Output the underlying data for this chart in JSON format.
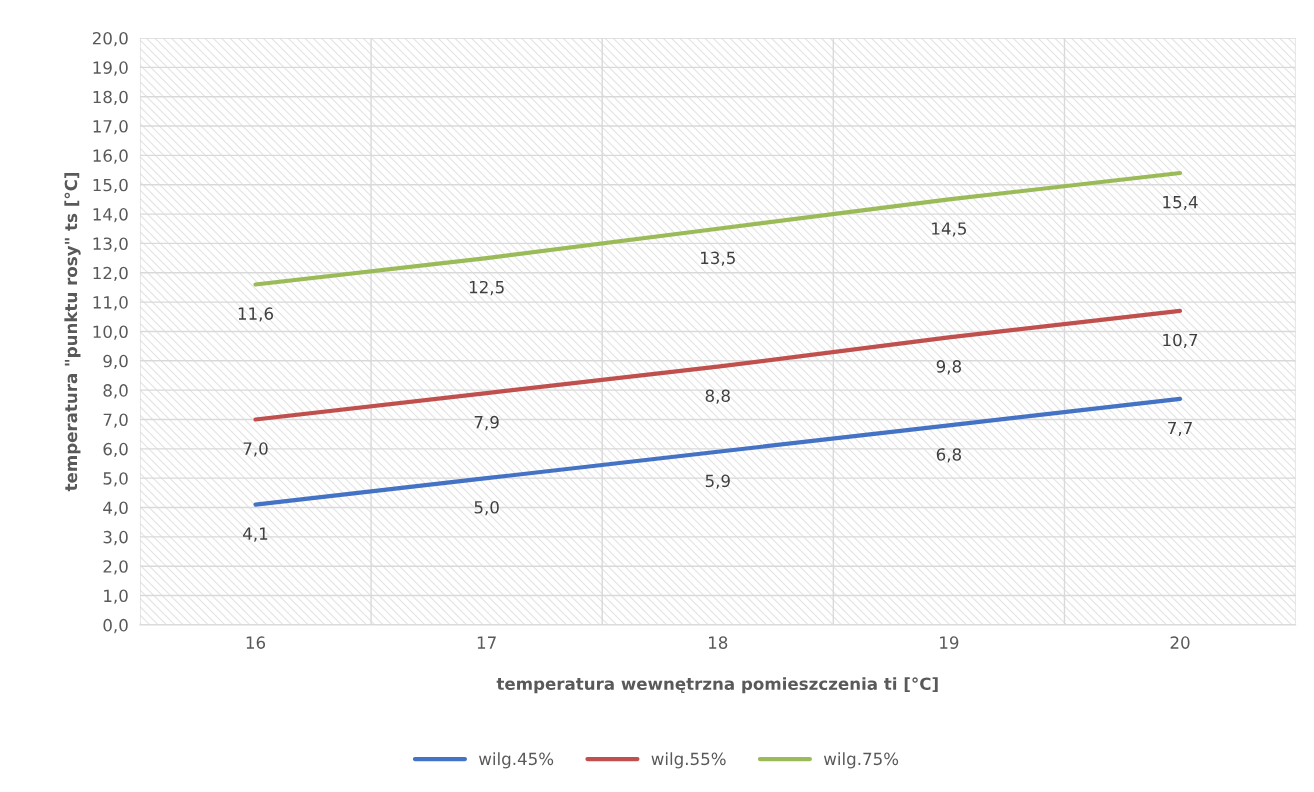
{
  "chart_data": {
    "type": "line",
    "xlabel": "temperatura wewnętrzna pomieszczenia ti [°C]",
    "ylabel": "temperatura \"punktu rosy\" ts [°C]",
    "categories": [
      "16",
      "17",
      "18",
      "19",
      "20"
    ],
    "series": [
      {
        "name": "wilg.45%",
        "color": "#4472c4",
        "values": [
          4.1,
          5.0,
          5.9,
          6.8,
          7.7
        ],
        "value_labels": [
          "4,1",
          "5,0",
          "5,9",
          "6,8",
          "7,7"
        ]
      },
      {
        "name": "wilg.55%",
        "color": "#c0504d",
        "values": [
          7.0,
          7.9,
          8.8,
          9.8,
          10.7
        ],
        "value_labels": [
          "7,0",
          "7,9",
          "8,8",
          "9,8",
          "10,7"
        ]
      },
      {
        "name": "wilg.75%",
        "color": "#9bbb59",
        "values": [
          11.6,
          12.5,
          13.5,
          14.5,
          15.4
        ],
        "value_labels": [
          "11,6",
          "12,5",
          "13,5",
          "14,5",
          "15,4"
        ]
      }
    ],
    "ylim": [
      0,
      20
    ],
    "yticks": [
      {
        "value": 0,
        "label": "0,0"
      },
      {
        "value": 1,
        "label": "1,0"
      },
      {
        "value": 2,
        "label": "2,0"
      },
      {
        "value": 3,
        "label": "3,0"
      },
      {
        "value": 4,
        "label": "4,0"
      },
      {
        "value": 5,
        "label": "5,0"
      },
      {
        "value": 6,
        "label": "6,0"
      },
      {
        "value": 7,
        "label": "7,0"
      },
      {
        "value": 8,
        "label": "8,0"
      },
      {
        "value": 9,
        "label": "9,0"
      },
      {
        "value": 10,
        "label": "10,0"
      },
      {
        "value": 11,
        "label": "11,0"
      },
      {
        "value": 12,
        "label": "12,0"
      },
      {
        "value": 13,
        "label": "13,0"
      },
      {
        "value": 14,
        "label": "14,0"
      },
      {
        "value": 15,
        "label": "15,0"
      },
      {
        "value": 16,
        "label": "16,0"
      },
      {
        "value": 17,
        "label": "17,0"
      },
      {
        "value": 18,
        "label": "18,0"
      },
      {
        "value": 19,
        "label": "19,0"
      },
      {
        "value": 20,
        "label": "20,0"
      }
    ],
    "grid": true,
    "legend": "bottom",
    "marker": "none",
    "line_style": "solid"
  }
}
